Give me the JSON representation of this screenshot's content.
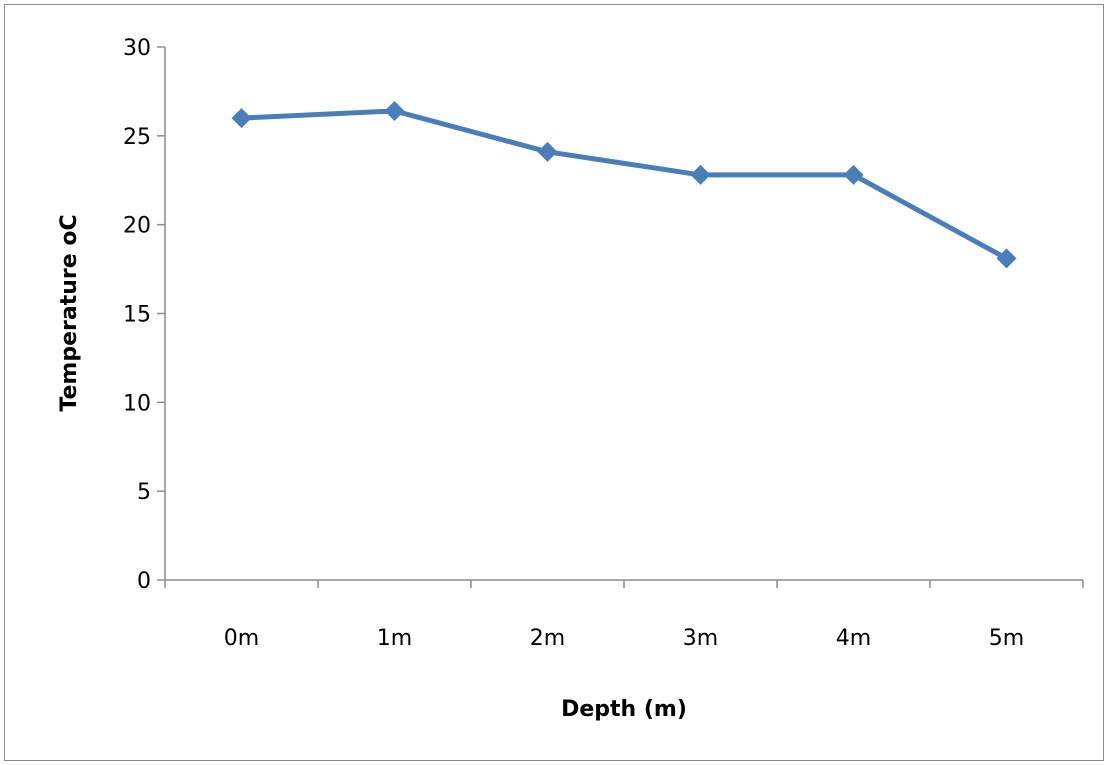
{
  "chart_data": {
    "type": "line",
    "categories": [
      "0m",
      "1m",
      "2m",
      "3m",
      "4m",
      "5m"
    ],
    "series": [
      {
        "values": [
          26.0,
          26.4,
          24.1,
          22.8,
          22.8,
          18.1
        ]
      }
    ],
    "xlabel": "Depth (m)",
    "ylabel": "Temperature oC",
    "ylim": [
      0,
      30
    ],
    "yticks": [
      "0",
      "5",
      "10",
      "15",
      "20",
      "25",
      "30"
    ],
    "grid": false,
    "legend": "none",
    "marker": "diamond",
    "series_color": "#4a7ebb"
  }
}
